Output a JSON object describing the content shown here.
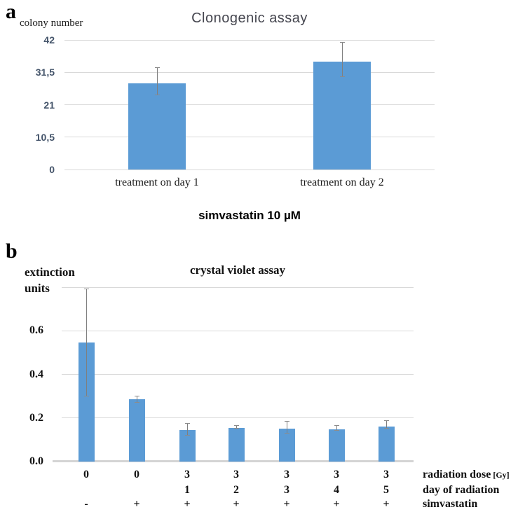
{
  "figure": {
    "panel_a": {
      "panel_label": "a",
      "x_axis_label": "simvastatin 10 µM"
    },
    "panel_b": {
      "panel_label": "b",
      "y_axis_label_line1": "extinction",
      "y_axis_label_line2": "units"
    }
  },
  "colors": {
    "bar_fill": "#5b9bd5",
    "gridline": "#d9d9d9",
    "error_bar": "#7f7f7f",
    "tick_label_a": "#44546a",
    "title_a": "#45464f",
    "text": "#111111"
  },
  "chart_data": [
    {
      "id": "a",
      "type": "bar",
      "title": "Clonogenic assay",
      "ylabel": "colony number",
      "xlabel": "simvastatin 10 µM",
      "categories": [
        "treatment on day 1",
        "treatment on day 2"
      ],
      "values": [
        28,
        35
      ],
      "error_up": [
        5,
        6
      ],
      "error_down": [
        4,
        5
      ],
      "ylim": [
        0,
        42
      ],
      "yticks": [
        0,
        10.5,
        21,
        31.5,
        42
      ],
      "ytick_labels": [
        "0",
        "10,5",
        "21",
        "31,5",
        "42"
      ],
      "grid": true,
      "legend": false,
      "bar_color": "#5b9bd5"
    },
    {
      "id": "b",
      "type": "bar",
      "title": "crystal violet assay",
      "ylabel": "extinction units",
      "categories": [
        "0 / - ",
        "0 / +",
        "3 / 1 / +",
        "3 / 2 / +",
        "3 / 3 / +",
        "3 / 4 / +",
        "3 / 5 / +"
      ],
      "values": [
        0.545,
        0.285,
        0.146,
        0.155,
        0.152,
        0.149,
        0.16
      ],
      "error_up": [
        0.245,
        0.015,
        0.028,
        0.008,
        0.03,
        0.015,
        0.028
      ],
      "error_down": [
        0.245,
        0.015,
        0.028,
        0.005,
        0.025,
        0.008,
        0.01
      ],
      "ylim": [
        0,
        0.8
      ],
      "yticks": [
        0,
        0.2,
        0.4,
        0.6,
        0.8
      ],
      "ytick_labels": [
        "0.0",
        "0.2",
        "0.4",
        "0.6",
        ""
      ],
      "grid": true,
      "legend": false,
      "bar_color": "#5b9bd5",
      "x_annotation_rows": [
        {
          "label": "radiation dose",
          "label_suffix": "[Gy]",
          "values": [
            "0",
            "0",
            "3",
            "3",
            "3",
            "3",
            "3"
          ]
        },
        {
          "label": "day of radiation",
          "label_suffix": "",
          "values": [
            "",
            "",
            "1",
            "2",
            "3",
            "4",
            "5"
          ]
        },
        {
          "label": "simvastatin",
          "label_suffix": "",
          "values": [
            "-",
            "+",
            "+",
            "+",
            "+",
            "+",
            "+"
          ]
        }
      ]
    }
  ]
}
